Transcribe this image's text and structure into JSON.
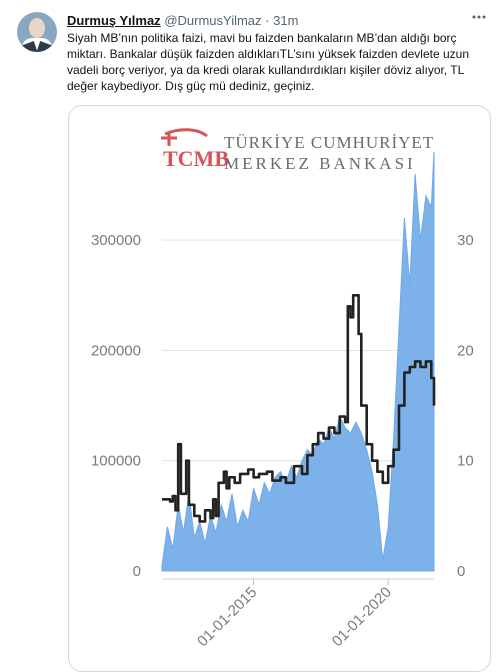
{
  "tweet": {
    "name": "Durmuş Yılmaz",
    "handle": "@DurmusYilmaz",
    "separator": "·",
    "time": "31m",
    "more_icon": "more-icon",
    "text": "Siyah MB’nın politika faizi, mavi bu faizden bankaların MB’dan aldığı borç miktarı. Bankalar düşük faizden aldıklarıTL’sını yüksek faizden devlete uzun vadeli borç veriyor, ya da kredi olarak kullandırdıkları kişiler döviz alıyor, TL değer kaybediyor. Dış güç mü dediniz, geçiniz."
  },
  "media": {
    "logo_mark": "TCMB",
    "logo_line1": "TÜRKİYE CUMHURİYET",
    "logo_line2": "MERKEZ BANKASI"
  },
  "chart_data": {
    "type": "area",
    "left_axis": {
      "ticks": [
        "0",
        "100000",
        "200000",
        "300000"
      ],
      "ylim": [
        0,
        340000
      ]
    },
    "right_axis": {
      "ticks": [
        "0",
        "10",
        "20",
        "30"
      ],
      "ylim": [
        0,
        34
      ]
    },
    "x_ticks": [
      "01-01-2015",
      "01-01-2020"
    ],
    "xlim": [
      2011.6,
      2021.7
    ],
    "grid": true,
    "series": [
      {
        "axis": "left",
        "style": "filled-area",
        "color": "#6fa8e8",
        "x": [
          2011.6,
          2011.8,
          2012.0,
          2012.2,
          2012.4,
          2012.6,
          2012.8,
          2013.0,
          2013.2,
          2013.4,
          2013.6,
          2013.8,
          2014.0,
          2014.2,
          2014.4,
          2014.6,
          2014.8,
          2015.0,
          2015.2,
          2015.4,
          2015.6,
          2015.8,
          2016.0,
          2016.2,
          2016.4,
          2016.6,
          2016.8,
          2017.0,
          2017.2,
          2017.4,
          2017.6,
          2017.8,
          2018.0,
          2018.2,
          2018.4,
          2018.6,
          2018.8,
          2019.0,
          2019.2,
          2019.4,
          2019.6,
          2019.8,
          2020.0,
          2020.2,
          2020.4,
          2020.6,
          2020.8,
          2021.0,
          2021.2,
          2021.4,
          2021.6,
          2021.7
        ],
        "values": [
          5000,
          40000,
          20000,
          60000,
          35000,
          70000,
          30000,
          45000,
          25000,
          50000,
          35000,
          60000,
          45000,
          70000,
          40000,
          55000,
          45000,
          75000,
          60000,
          80000,
          70000,
          85000,
          90000,
          80000,
          95000,
          85000,
          100000,
          110000,
          105000,
          120000,
          115000,
          130000,
          120000,
          140000,
          130000,
          125000,
          135000,
          125000,
          110000,
          90000,
          60000,
          10000,
          40000,
          120000,
          220000,
          320000,
          260000,
          360000,
          300000,
          340000,
          330000,
          380000
        ]
      },
      {
        "axis": "right",
        "style": "line",
        "color": "#222222",
        "x": [
          2011.6,
          2011.9,
          2012.0,
          2012.1,
          2012.2,
          2012.3,
          2012.5,
          2012.6,
          2012.8,
          2013.0,
          2013.2,
          2013.4,
          2013.5,
          2013.6,
          2013.7,
          2013.9,
          2014.0,
          2014.1,
          2014.3,
          2014.5,
          2014.8,
          2015.0,
          2015.2,
          2015.5,
          2015.7,
          2016.0,
          2016.2,
          2016.5,
          2016.8,
          2017.0,
          2017.2,
          2017.4,
          2017.6,
          2017.8,
          2018.0,
          2018.2,
          2018.4,
          2018.5,
          2018.6,
          2018.7,
          2018.9,
          2019.0,
          2019.2,
          2019.4,
          2019.6,
          2019.8,
          2020.0,
          2020.2,
          2020.4,
          2020.6,
          2020.8,
          2021.0,
          2021.2,
          2021.4,
          2021.6,
          2021.7
        ],
        "values": [
          6.5,
          6.3,
          6.8,
          5.5,
          11.5,
          7.0,
          10.0,
          6.0,
          5.0,
          4.5,
          5.5,
          4.8,
          6.5,
          5.0,
          8.0,
          9.0,
          7.5,
          8.5,
          8.0,
          8.8,
          9.2,
          8.5,
          8.8,
          9.0,
          8.2,
          8.5,
          8.0,
          9.5,
          8.8,
          10.5,
          11.5,
          12.5,
          12.0,
          13.0,
          12.5,
          14.0,
          13.5,
          24.0,
          23.0,
          25.0,
          21.5,
          15.0,
          11.5,
          10.0,
          9.0,
          8.0,
          9.5,
          11.0,
          15.0,
          18.0,
          18.5,
          19.0,
          18.5,
          19.0,
          17.5,
          15.0
        ]
      }
    ]
  }
}
